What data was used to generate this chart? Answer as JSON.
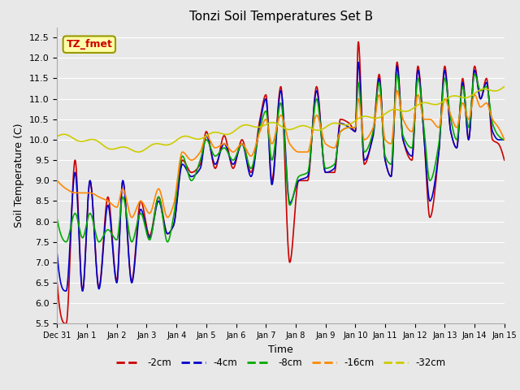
{
  "title": "Tonzi Soil Temperatures Set B",
  "xlabel": "Time",
  "ylabel": "Soil Temperature (C)",
  "ylim": [
    5.5,
    12.75
  ],
  "xlim_days": [
    0,
    15
  ],
  "bg_color": "#e8e8e8",
  "series": {
    "2cm": {
      "color": "#cc0000",
      "label": "-2cm",
      "lw": 1.2
    },
    "4cm": {
      "color": "#0000cc",
      "label": "-4cm",
      "lw": 1.2
    },
    "8cm": {
      "color": "#00aa00",
      "label": "-8cm",
      "lw": 1.2
    },
    "16cm": {
      "color": "#ff8800",
      "label": "-16cm",
      "lw": 1.2
    },
    "32cm": {
      "color": "#cccc00",
      "label": "-32cm",
      "lw": 1.2
    }
  },
  "yticks": [
    5.5,
    6.0,
    6.5,
    7.0,
    7.5,
    8.0,
    8.5,
    9.0,
    9.5,
    10.0,
    10.5,
    11.0,
    11.5,
    12.0,
    12.5
  ],
  "annotation": {
    "text": "TZ_fmet",
    "color": "#cc0000",
    "bg_color": "#ffffaa",
    "edge_color": "#999900",
    "fontsize": 9,
    "fontweight": "bold"
  },
  "figsize": [
    6.4,
    4.8
  ],
  "dpi": 100
}
